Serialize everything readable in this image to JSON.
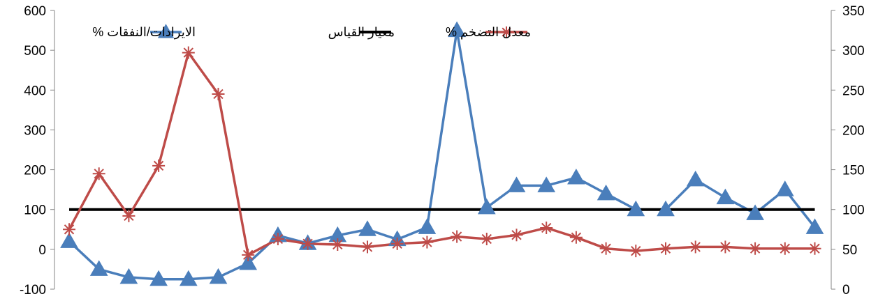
{
  "colors": {
    "revenue_expense": "#4A7EBB",
    "benchmark": "#000000",
    "inflation": "#BE4B48",
    "axis": "#868686",
    "background": "#FFFFFF"
  },
  "chart_data": {
    "type": "line",
    "title": "",
    "xlabel": "",
    "ylabel": "",
    "ylim": [
      -100,
      600
    ],
    "y_ticks": [
      -100,
      0,
      100,
      200,
      300,
      400,
      500,
      600
    ],
    "y2lim": [
      0,
      350
    ],
    "y2_ticks": [
      0,
      50,
      100,
      150,
      200,
      250,
      300,
      350
    ],
    "grid": false,
    "legend_position": "top",
    "point_count": 26,
    "series": [
      {
        "name": "الايرادات/النفقات %",
        "axis": "left",
        "marker": "triangle",
        "color": "#4A7EBB",
        "values": [
          20,
          -50,
          -70,
          -75,
          -75,
          -70,
          -35,
          35,
          15,
          35,
          50,
          25,
          55,
          550,
          105,
          160,
          160,
          180,
          140,
          100,
          100,
          175,
          130,
          90,
          150,
          55
        ]
      },
      {
        "name": "معيار القياس",
        "axis": "left",
        "marker": "none",
        "color": "#000000",
        "values": [
          100,
          100,
          100,
          100,
          100,
          100,
          100,
          100,
          100,
          100,
          100,
          100,
          100,
          100,
          100,
          100,
          100,
          100,
          100,
          100,
          100,
          100,
          100,
          100,
          100,
          100
        ]
      },
      {
        "name": "معدل التضخم %",
        "axis": "right",
        "marker": "star",
        "color": "#BE4B48",
        "values": [
          75,
          145,
          92,
          155,
          297,
          245,
          43,
          63,
          57,
          56,
          53,
          57,
          59,
          66,
          63,
          68,
          77,
          65,
          51,
          48,
          51,
          53,
          53,
          51,
          51,
          51
        ]
      }
    ]
  }
}
